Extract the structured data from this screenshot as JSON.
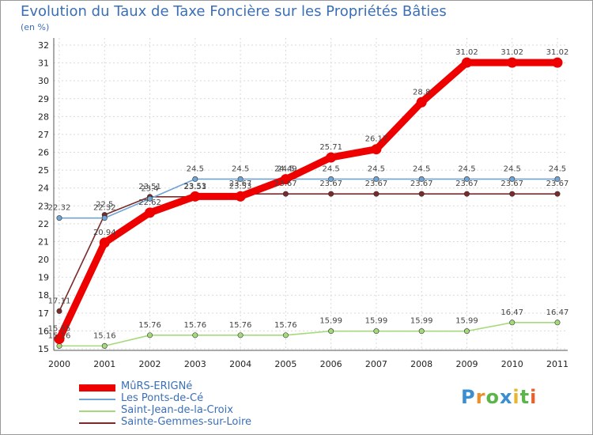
{
  "chart_data": {
    "type": "line",
    "title": "Evolution du Taux de Taxe Foncière sur les Propriétés Bâties",
    "subtitle": "(en %)",
    "xlabel": "",
    "ylabel": "",
    "ylim": [
      15,
      32
    ],
    "yticks": [
      "15",
      "16",
      "17",
      "18",
      "19",
      "20",
      "21",
      "22",
      "23",
      "24",
      "25",
      "26",
      "27",
      "28",
      "29",
      "30",
      "31",
      "32"
    ],
    "categories": [
      "2000",
      "2001",
      "2002",
      "2003",
      "2004",
      "2005",
      "2006",
      "2007",
      "2008",
      "2009",
      "2010",
      "2011"
    ],
    "series": [
      {
        "name": "MûRS-ERIGNé",
        "color": "#ee0000",
        "values": [
          15.55,
          20.94,
          22.62,
          23.53,
          23.53,
          24.49,
          25.71,
          26.17,
          28.8,
          31.02,
          31.02,
          31.02
        ],
        "labels": [
          "15.55",
          "20.94",
          "22.62",
          "23.53",
          "23.53",
          "24.49",
          "25.71",
          "26.17",
          "28.8",
          "31.02",
          "31.02",
          "31.02"
        ]
      },
      {
        "name": "Les Ponts-de-Cé",
        "color": "#6fa4d4",
        "values": [
          22.32,
          22.32,
          23.4,
          24.5,
          24.5,
          24.5,
          24.5,
          24.5,
          24.5,
          24.5,
          24.5,
          24.5
        ],
        "labels": [
          "22.32",
          "22.32",
          "23.4",
          "24.5",
          "24.5",
          "24.5",
          "24.5",
          "24.5",
          "24.5",
          "24.5",
          "24.5",
          "24.5"
        ]
      },
      {
        "name": "Saint-Jean-de-la-Croix",
        "color": "#a6d97b",
        "values": [
          15.16,
          15.16,
          15.76,
          15.76,
          15.76,
          15.76,
          15.99,
          15.99,
          15.99,
          15.99,
          16.47,
          16.47
        ],
        "labels": [
          "15.16",
          "15.16",
          "15.76",
          "15.76",
          "15.76",
          "15.76",
          "15.99",
          "15.99",
          "15.99",
          "15.99",
          "16.47",
          "16.47"
        ]
      },
      {
        "name": "Sainte-Gemmes-sur-Loire",
        "color": "#7a2a2a",
        "values": [
          17.11,
          22.5,
          23.51,
          23.51,
          23.67,
          23.67,
          23.67,
          23.67,
          23.67,
          23.67,
          23.67,
          23.67
        ],
        "labels": [
          "17.11",
          "22.5",
          "23.51",
          "23.51",
          "23.67",
          "23.67",
          "23.67",
          "23.67",
          "23.67",
          "23.67",
          "23.67",
          "23.67"
        ]
      }
    ],
    "legend_position": "bottom-left"
  },
  "logo": {
    "letters": [
      "P",
      "r",
      "o",
      "x",
      "i",
      "t",
      "i"
    ],
    "colors": [
      "#3a8fd1",
      "#e8912c",
      "#5bb54a",
      "#3a8fd1",
      "#e8b52c",
      "#5bb54a",
      "#e8612c"
    ]
  }
}
